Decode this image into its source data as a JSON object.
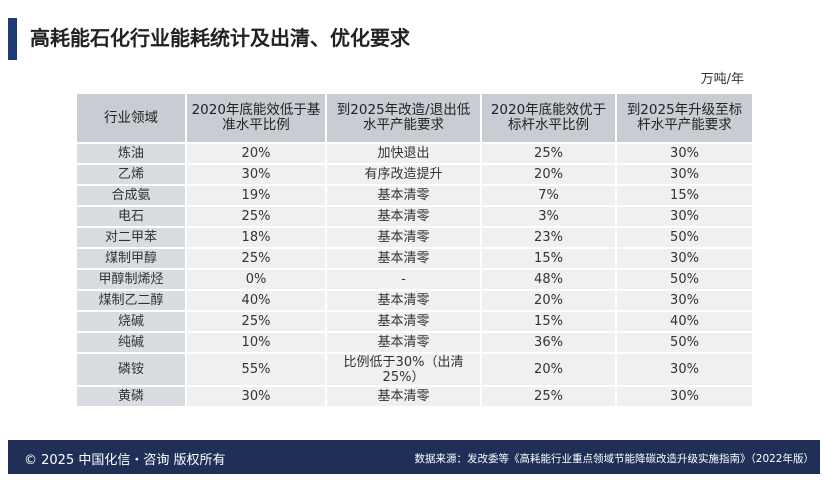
{
  "header": {
    "title": "高耗能石化行业能耗统计及出清、优化要求",
    "unit": "万吨/年"
  },
  "table": {
    "columns": [
      "行业领域",
      "2020年底能效低于基准水平比例",
      "到2025年改造/退出低水平产能要求",
      "2020年底能效优于标杆水平比例",
      "到2025年升级至标杆水平产能要求"
    ],
    "rows": [
      [
        "炼油",
        "20%",
        "加快退出",
        "25%",
        "30%"
      ],
      [
        "乙烯",
        "30%",
        "有序改造提升",
        "20%",
        "30%"
      ],
      [
        "合成氨",
        "19%",
        "基本清零",
        "7%",
        "15%"
      ],
      [
        "电石",
        "25%",
        "基本清零",
        "3%",
        "30%"
      ],
      [
        "对二甲苯",
        "18%",
        "基本清零",
        "23%",
        "50%"
      ],
      [
        "煤制甲醇",
        "25%",
        "基本清零",
        "15%",
        "30%"
      ],
      [
        "甲醇制烯烃",
        "0%",
        "-",
        "48%",
        "50%"
      ],
      [
        "煤制乙二醇",
        "40%",
        "基本清零",
        "20%",
        "30%"
      ],
      [
        "烧碱",
        "25%",
        "基本清零",
        "15%",
        "40%"
      ],
      [
        "纯碱",
        "10%",
        "基本清零",
        "36%",
        "50%"
      ],
      [
        "磷铵",
        "55%",
        "比例低于30%（出清25%）",
        "20%",
        "30%"
      ],
      [
        "黄磷",
        "30%",
        "基本清零",
        "25%",
        "30%"
      ]
    ]
  },
  "footer": {
    "copyright": "© 2025 中国化信・咨询 版权所有",
    "source": "数据来源：发改委等《高耗能行业重点领域节能降碳改造升级实施指南》（2022年版）"
  }
}
